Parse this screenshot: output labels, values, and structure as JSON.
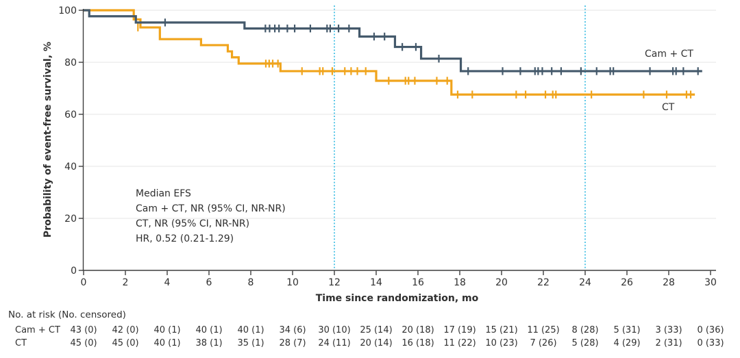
{
  "figure": {
    "y_axis_title": "Probability of event-free survival, %",
    "x_axis_title": "Time since randomization, mo",
    "curve_labels": {
      "camct": "Cam + CT",
      "ct": "CT"
    },
    "annotation_lines": {
      "line1": "Median EFS",
      "line2": "Cam + CT, NR (95% CI, NR-NR)",
      "line3": "CT, NR (95% CI, NR-NR)",
      "line4": "HR, 0.52 (0.21-1.29)"
    }
  },
  "chart_data": {
    "type": "line",
    "subtype": "kaplan-meier-step",
    "xlabel": "Time since randomization, mo",
    "ylabel": "Probability of event-free survival, %",
    "xlim": [
      0,
      30
    ],
    "ylim": [
      0,
      100
    ],
    "x_ticks": [
      0,
      2,
      4,
      6,
      8,
      10,
      12,
      14,
      16,
      18,
      20,
      22,
      24,
      26,
      28,
      30
    ],
    "y_ticks": [
      0,
      20,
      40,
      60,
      80,
      100
    ],
    "grid": "horizontal-light",
    "reference_lines_x": [
      12,
      24
    ],
    "annotations": [
      "Median EFS",
      "Cam + CT, NR (95% CI, NR-NR)",
      "CT, NR (95% CI, NR-NR)",
      "HR, 0.52 (0.21-1.29)"
    ],
    "series": [
      {
        "name": "Cam + CT",
        "color": "#44596b",
        "end_month": 29.6,
        "steps": [
          [
            0,
            100
          ],
          [
            0.27,
            97.7
          ],
          [
            2.5,
            95.3
          ],
          [
            7.7,
            93.0
          ],
          [
            13.2,
            89.9
          ],
          [
            14.9,
            85.9
          ],
          [
            16.15,
            81.4
          ],
          [
            18.05,
            76.6
          ]
        ],
        "censor_marks": [
          [
            3.9,
            95.3
          ],
          [
            8.7,
            93.0
          ],
          [
            8.9,
            93.0
          ],
          [
            9.15,
            93.0
          ],
          [
            9.35,
            93.0
          ],
          [
            9.75,
            93.0
          ],
          [
            10.1,
            93.0
          ],
          [
            10.85,
            93.0
          ],
          [
            11.65,
            93.0
          ],
          [
            11.8,
            93.0
          ],
          [
            12.2,
            93.0
          ],
          [
            12.7,
            93.0
          ],
          [
            13.9,
            89.9
          ],
          [
            14.4,
            89.9
          ],
          [
            15.25,
            85.9
          ],
          [
            15.9,
            85.9
          ],
          [
            17.0,
            81.4
          ],
          [
            18.4,
            76.6
          ],
          [
            20.05,
            76.6
          ],
          [
            20.9,
            76.6
          ],
          [
            21.6,
            76.6
          ],
          [
            21.75,
            76.6
          ],
          [
            21.95,
            76.6
          ],
          [
            22.4,
            76.6
          ],
          [
            22.85,
            76.6
          ],
          [
            23.8,
            76.6
          ],
          [
            24.55,
            76.6
          ],
          [
            25.2,
            76.6
          ],
          [
            25.35,
            76.6
          ],
          [
            27.1,
            76.6
          ],
          [
            28.2,
            76.6
          ],
          [
            28.35,
            76.6
          ],
          [
            28.7,
            76.6
          ],
          [
            29.4,
            76.6
          ]
        ]
      },
      {
        "name": "CT",
        "color": "#f0a41c",
        "end_month": 29.25,
        "steps": [
          [
            0,
            100
          ],
          [
            2.4,
            96.5
          ],
          [
            2.72,
            93.4
          ],
          [
            3.65,
            88.9
          ],
          [
            5.62,
            86.6
          ],
          [
            6.9,
            84.2
          ],
          [
            7.1,
            81.9
          ],
          [
            7.42,
            79.5
          ],
          [
            9.42,
            76.6
          ],
          [
            14.0,
            72.9
          ],
          [
            17.6,
            67.6
          ]
        ],
        "censor_marks": [
          [
            2.6,
            93.4
          ],
          [
            8.72,
            79.5
          ],
          [
            8.88,
            79.5
          ],
          [
            9.05,
            79.5
          ],
          [
            9.3,
            79.5
          ],
          [
            10.45,
            76.6
          ],
          [
            11.3,
            76.6
          ],
          [
            11.45,
            76.6
          ],
          [
            11.9,
            76.6
          ],
          [
            12.5,
            76.6
          ],
          [
            12.8,
            76.6
          ],
          [
            13.1,
            76.6
          ],
          [
            13.5,
            76.6
          ],
          [
            14.6,
            72.9
          ],
          [
            15.4,
            72.9
          ],
          [
            15.55,
            72.9
          ],
          [
            15.85,
            72.9
          ],
          [
            16.9,
            72.9
          ],
          [
            17.4,
            72.9
          ],
          [
            17.9,
            67.6
          ],
          [
            18.6,
            67.6
          ],
          [
            20.7,
            67.6
          ],
          [
            21.15,
            67.6
          ],
          [
            22.1,
            67.6
          ],
          [
            22.45,
            67.6
          ],
          [
            22.6,
            67.6
          ],
          [
            24.3,
            67.6
          ],
          [
            26.8,
            67.6
          ],
          [
            27.9,
            67.6
          ],
          [
            28.85,
            67.6
          ],
          [
            29.05,
            67.6
          ]
        ]
      }
    ]
  },
  "risk_table": {
    "header": "No. at risk (No. censored)",
    "time_points": [
      0,
      2,
      4,
      6,
      8,
      10,
      12,
      14,
      16,
      18,
      20,
      22,
      24,
      26,
      28,
      30
    ],
    "rows": [
      {
        "label": "Cam + CT",
        "values": [
          "43 (0)",
          "42 (0)",
          "40 (1)",
          "40 (1)",
          "40 (1)",
          "34 (6)",
          "30 (10)",
          "25 (14)",
          "20 (18)",
          "17 (19)",
          "15 (21)",
          "11 (25)",
          "8 (28)",
          "5 (31)",
          "3 (33)",
          "0 (36)"
        ]
      },
      {
        "label": "CT",
        "values": [
          "45 (0)",
          "45 (0)",
          "40 (1)",
          "38 (1)",
          "35 (1)",
          "28 (7)",
          "24 (11)",
          "20 (14)",
          "16 (18)",
          "11 (22)",
          "10 (23)",
          "7 (26)",
          "5 (28)",
          "4 (29)",
          "2 (31)",
          "0 (33)"
        ]
      }
    ]
  },
  "colors": {
    "camct_line": "#44596b",
    "ct_line": "#f0a41c",
    "reference_line": "#5bc8e8",
    "gridline": "#e9e9ea",
    "axis": "#3d3d3d",
    "text": "#2f2f2f"
  }
}
